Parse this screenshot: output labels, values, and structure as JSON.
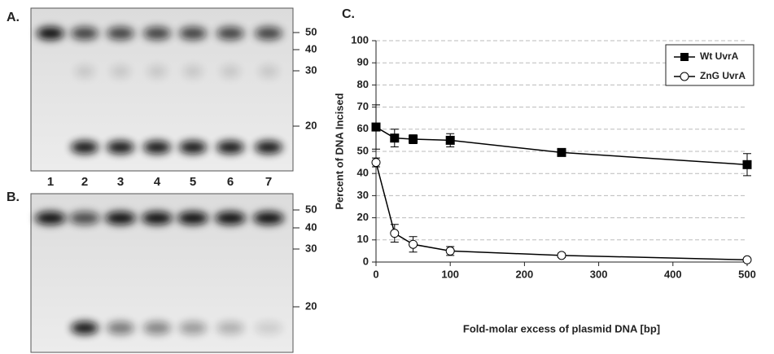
{
  "panels": {
    "a": {
      "label": "A.",
      "markers": [
        "50",
        "40",
        "30",
        "20"
      ],
      "lanes": [
        "1",
        "2",
        "3",
        "4",
        "5",
        "6",
        "7"
      ]
    },
    "b": {
      "label": "B.",
      "markers": [
        "50",
        "40",
        "30",
        "20"
      ]
    }
  },
  "chart_data": {
    "type": "line",
    "label": "C.",
    "x_label": "Fold-molar excess of plasmid DNA [bp]",
    "y_label": "Percent of DNA Incised",
    "x": [
      0,
      25,
      50,
      100,
      250,
      500
    ],
    "series": [
      {
        "name": "Wt UvrA",
        "color": "#000000",
        "marker": "square",
        "values": [
          61,
          56,
          55.5,
          55,
          49.5,
          44
        ],
        "errors": [
          10,
          4,
          2,
          3,
          1,
          5
        ]
      },
      {
        "name": "ZnG UvrA",
        "color": "#000000",
        "marker": "circle",
        "values": [
          45,
          13,
          8,
          5,
          3,
          1
        ],
        "errors": [
          2,
          4,
          3.5,
          2,
          1,
          0.5
        ]
      }
    ],
    "xlim": [
      0,
      500
    ],
    "xticks": [
      0,
      100,
      200,
      300,
      400,
      500
    ],
    "ylim": [
      0,
      100
    ],
    "yticks": [
      0,
      10,
      20,
      30,
      40,
      50,
      60,
      70,
      80,
      90,
      100
    ],
    "grid": true,
    "legend": "top-right"
  }
}
